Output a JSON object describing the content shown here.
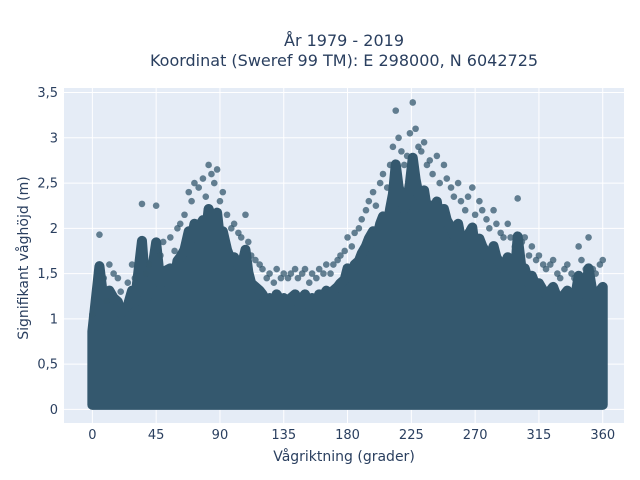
{
  "chart_data": {
    "type": "scatter",
    "title": "År 1979 - 2019",
    "subtitle": "Koordinat (Sweref 99 TM): E 298000, N 6042725",
    "xlabel": "Vågriktning (grader)",
    "ylabel": "Signifikant våghöjd (m)",
    "xlim": [
      -20,
      375
    ],
    "ylim": [
      -0.15,
      3.55
    ],
    "xticks": [
      0,
      45,
      90,
      135,
      180,
      225,
      270,
      315,
      360
    ],
    "xtick_labels": [
      "0",
      "45",
      "90",
      "135",
      "180",
      "225",
      "270",
      "315",
      "360"
    ],
    "yticks": [
      0,
      0.5,
      1,
      1.5,
      2,
      2.5,
      3,
      3.5
    ],
    "ytick_labels": [
      "0",
      "0,5",
      "1",
      "1,5",
      "2",
      "2,5",
      "3",
      "3,5"
    ],
    "grid": true,
    "marker_color": "#34586e",
    "series": [
      {
        "points": [
          [
            0,
            1.05
          ],
          [
            5,
            1.93
          ],
          [
            8,
            1.45
          ],
          [
            10,
            1.2
          ],
          [
            12,
            1.6
          ],
          [
            15,
            1.5
          ],
          [
            18,
            1.45
          ],
          [
            20,
            1.3
          ],
          [
            25,
            1.4
          ],
          [
            28,
            1.6
          ],
          [
            30,
            1.45
          ],
          [
            35,
            2.27
          ],
          [
            38,
            1.5
          ],
          [
            40,
            1.6
          ],
          [
            45,
            2.25
          ],
          [
            48,
            1.7
          ],
          [
            50,
            1.85
          ],
          [
            55,
            1.9
          ],
          [
            58,
            1.75
          ],
          [
            60,
            2.0
          ],
          [
            62,
            2.05
          ],
          [
            65,
            2.15
          ],
          [
            68,
            2.4
          ],
          [
            70,
            2.3
          ],
          [
            72,
            2.5
          ],
          [
            75,
            2.45
          ],
          [
            78,
            2.55
          ],
          [
            80,
            2.35
          ],
          [
            82,
            2.7
          ],
          [
            84,
            2.6
          ],
          [
            86,
            2.5
          ],
          [
            88,
            2.65
          ],
          [
            90,
            2.3
          ],
          [
            92,
            2.4
          ],
          [
            95,
            2.15
          ],
          [
            98,
            2.0
          ],
          [
            100,
            2.05
          ],
          [
            103,
            1.95
          ],
          [
            105,
            1.9
          ],
          [
            108,
            2.15
          ],
          [
            110,
            1.85
          ],
          [
            112,
            1.7
          ],
          [
            115,
            1.65
          ],
          [
            118,
            1.6
          ],
          [
            120,
            1.55
          ],
          [
            123,
            1.45
          ],
          [
            125,
            1.5
          ],
          [
            128,
            1.4
          ],
          [
            130,
            1.55
          ],
          [
            133,
            1.45
          ],
          [
            135,
            1.5
          ],
          [
            138,
            1.45
          ],
          [
            140,
            1.5
          ],
          [
            143,
            1.55
          ],
          [
            145,
            1.45
          ],
          [
            148,
            1.5
          ],
          [
            150,
            1.55
          ],
          [
            153,
            1.4
          ],
          [
            155,
            1.5
          ],
          [
            158,
            1.45
          ],
          [
            160,
            1.55
          ],
          [
            163,
            1.5
          ],
          [
            165,
            1.6
          ],
          [
            168,
            1.5
          ],
          [
            170,
            1.6
          ],
          [
            173,
            1.65
          ],
          [
            175,
            1.7
          ],
          [
            178,
            1.75
          ],
          [
            180,
            1.9
          ],
          [
            183,
            1.8
          ],
          [
            185,
            1.95
          ],
          [
            188,
            2.0
          ],
          [
            190,
            2.1
          ],
          [
            193,
            2.2
          ],
          [
            195,
            2.3
          ],
          [
            198,
            2.4
          ],
          [
            200,
            2.25
          ],
          [
            203,
            2.5
          ],
          [
            205,
            2.6
          ],
          [
            208,
            2.45
          ],
          [
            210,
            2.7
          ],
          [
            212,
            2.9
          ],
          [
            214,
            3.3
          ],
          [
            216,
            3.0
          ],
          [
            218,
            2.85
          ],
          [
            220,
            2.7
          ],
          [
            222,
            2.8
          ],
          [
            224,
            3.05
          ],
          [
            226,
            3.39
          ],
          [
            228,
            3.1
          ],
          [
            230,
            2.9
          ],
          [
            232,
            2.85
          ],
          [
            234,
            2.95
          ],
          [
            236,
            2.7
          ],
          [
            238,
            2.75
          ],
          [
            240,
            2.6
          ],
          [
            243,
            2.8
          ],
          [
            245,
            2.5
          ],
          [
            248,
            2.7
          ],
          [
            250,
            2.55
          ],
          [
            253,
            2.45
          ],
          [
            255,
            2.35
          ],
          [
            258,
            2.5
          ],
          [
            260,
            2.3
          ],
          [
            263,
            2.2
          ],
          [
            265,
            2.35
          ],
          [
            268,
            2.45
          ],
          [
            270,
            2.15
          ],
          [
            273,
            2.3
          ],
          [
            275,
            2.2
          ],
          [
            278,
            2.1
          ],
          [
            280,
            2.0
          ],
          [
            283,
            2.2
          ],
          [
            285,
            2.05
          ],
          [
            288,
            1.95
          ],
          [
            290,
            1.9
          ],
          [
            293,
            2.05
          ],
          [
            295,
            1.9
          ],
          [
            298,
            1.8
          ],
          [
            300,
            2.33
          ],
          [
            303,
            1.85
          ],
          [
            305,
            1.9
          ],
          [
            308,
            1.7
          ],
          [
            310,
            1.8
          ],
          [
            313,
            1.65
          ],
          [
            315,
            1.7
          ],
          [
            318,
            1.6
          ],
          [
            320,
            1.55
          ],
          [
            323,
            1.6
          ],
          [
            325,
            1.65
          ],
          [
            328,
            1.5
          ],
          [
            330,
            1.45
          ],
          [
            333,
            1.55
          ],
          [
            335,
            1.6
          ],
          [
            338,
            1.5
          ],
          [
            340,
            1.45
          ],
          [
            343,
            1.8
          ],
          [
            345,
            1.65
          ],
          [
            348,
            1.55
          ],
          [
            350,
            1.9
          ],
          [
            353,
            1.55
          ],
          [
            355,
            1.5
          ],
          [
            358,
            1.6
          ],
          [
            360,
            1.65
          ]
        ]
      }
    ]
  }
}
